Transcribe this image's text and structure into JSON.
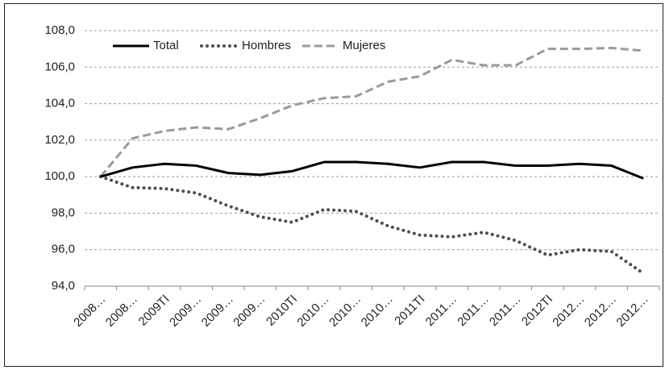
{
  "chart_data": {
    "type": "line",
    "categories": [
      "2008…",
      "2008…",
      "2009TI",
      "2009…",
      "2009…",
      "2009…",
      "2010TI",
      "2010…",
      "2010…",
      "2010…",
      "2011TI",
      "2011…",
      "2011…",
      "2011…",
      "2012TI",
      "2012…",
      "2012…",
      "2012…"
    ],
    "series": [
      {
        "name": "Total",
        "color": "#000000",
        "line_style": "solid",
        "values": [
          100,
          100.5,
          100.7,
          100.6,
          100.2,
          100.1,
          100.3,
          100.8,
          100.8,
          100.7,
          100.5,
          100.8,
          100.8,
          100.6,
          100.6,
          100.7,
          100.6,
          99.9
        ]
      },
      {
        "name": "Hombres",
        "color": "#4d4d4d",
        "line_style": "dotted",
        "values": [
          100,
          99.4,
          99.35,
          99.1,
          98.4,
          97.8,
          97.5,
          98.2,
          98.1,
          97.3,
          96.8,
          96.7,
          96.95,
          96.5,
          95.7,
          96.0,
          95.9,
          94.7
        ]
      },
      {
        "name": "Mujeres",
        "color": "#9a9a9a",
        "line_style": "dashed",
        "values": [
          100,
          102.1,
          102.5,
          102.7,
          102.6,
          103.2,
          103.9,
          104.3,
          104.4,
          105.2,
          105.5,
          106.4,
          106.1,
          106.1,
          107.0,
          107.0,
          107.05,
          106.9
        ]
      }
    ],
    "ylim": [
      94,
      108
    ],
    "yticks": [
      {
        "value": 94,
        "label": "94,0"
      },
      {
        "value": 96,
        "label": "96,0"
      },
      {
        "value": 98,
        "label": "98,0"
      },
      {
        "value": 100,
        "label": "100,0"
      },
      {
        "value": 102,
        "label": "102,0"
      },
      {
        "value": 104,
        "label": "104,0"
      },
      {
        "value": 106,
        "label": "106,0"
      },
      {
        "value": 108,
        "label": "108,0"
      }
    ],
    "grid": true,
    "legend": "top-left"
  }
}
